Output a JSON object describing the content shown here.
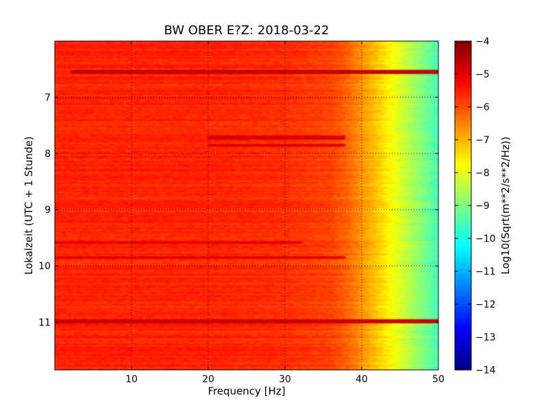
{
  "chart_data": {
    "type": "heatmap",
    "title": "BW OBER E?Z: 2018-03-22",
    "xlabel": "Frequency [Hz]",
    "ylabel": "Lokalzeit (UTC + 1 Stunde)",
    "xlim": [
      0,
      50
    ],
    "ylim": [
      11.85,
      6.0
    ],
    "y_inverted": true,
    "x_ticks": [
      10,
      20,
      30,
      40,
      50
    ],
    "y_ticks": [
      7,
      8,
      9,
      10,
      11
    ],
    "grid": true,
    "grid_style": "dotted",
    "colormap": "jet",
    "colorbar": {
      "label": "Log10(Sqrt(m**2/s**2/Hz))",
      "range": [
        -14,
        -4
      ],
      "ticks": [
        -4,
        -5,
        -6,
        -7,
        -8,
        -9,
        -10,
        -11,
        -12,
        -13,
        -14
      ]
    },
    "spectral_profile": {
      "frequency_hz": [
        0,
        5,
        10,
        20,
        30,
        36,
        38,
        40,
        42,
        44,
        46,
        48,
        50
      ],
      "log10_amplitude": [
        -5.6,
        -5.6,
        -5.6,
        -5.6,
        -5.7,
        -5.9,
        -6.2,
        -6.7,
        -7.2,
        -7.8,
        -8.4,
        -9.0,
        -9.6
      ]
    },
    "strong_bands": [
      {
        "time_h": 6.55,
        "from_hz": 2,
        "to_hz": 50,
        "log10_amplitude": -4.7
      },
      {
        "time_h": 7.72,
        "from_hz": 20,
        "to_hz": 38,
        "log10_amplitude": -4.9
      },
      {
        "time_h": 7.85,
        "from_hz": 20,
        "to_hz": 38,
        "log10_amplitude": -4.9
      },
      {
        "time_h": 9.58,
        "from_hz": 0,
        "to_hz": 32,
        "log10_amplitude": -5.0
      },
      {
        "time_h": 9.85,
        "from_hz": 0,
        "to_hz": 38,
        "log10_amplitude": -5.0
      },
      {
        "time_h": 10.98,
        "from_hz": 0,
        "to_hz": 50,
        "log10_amplitude": -4.8
      }
    ]
  }
}
